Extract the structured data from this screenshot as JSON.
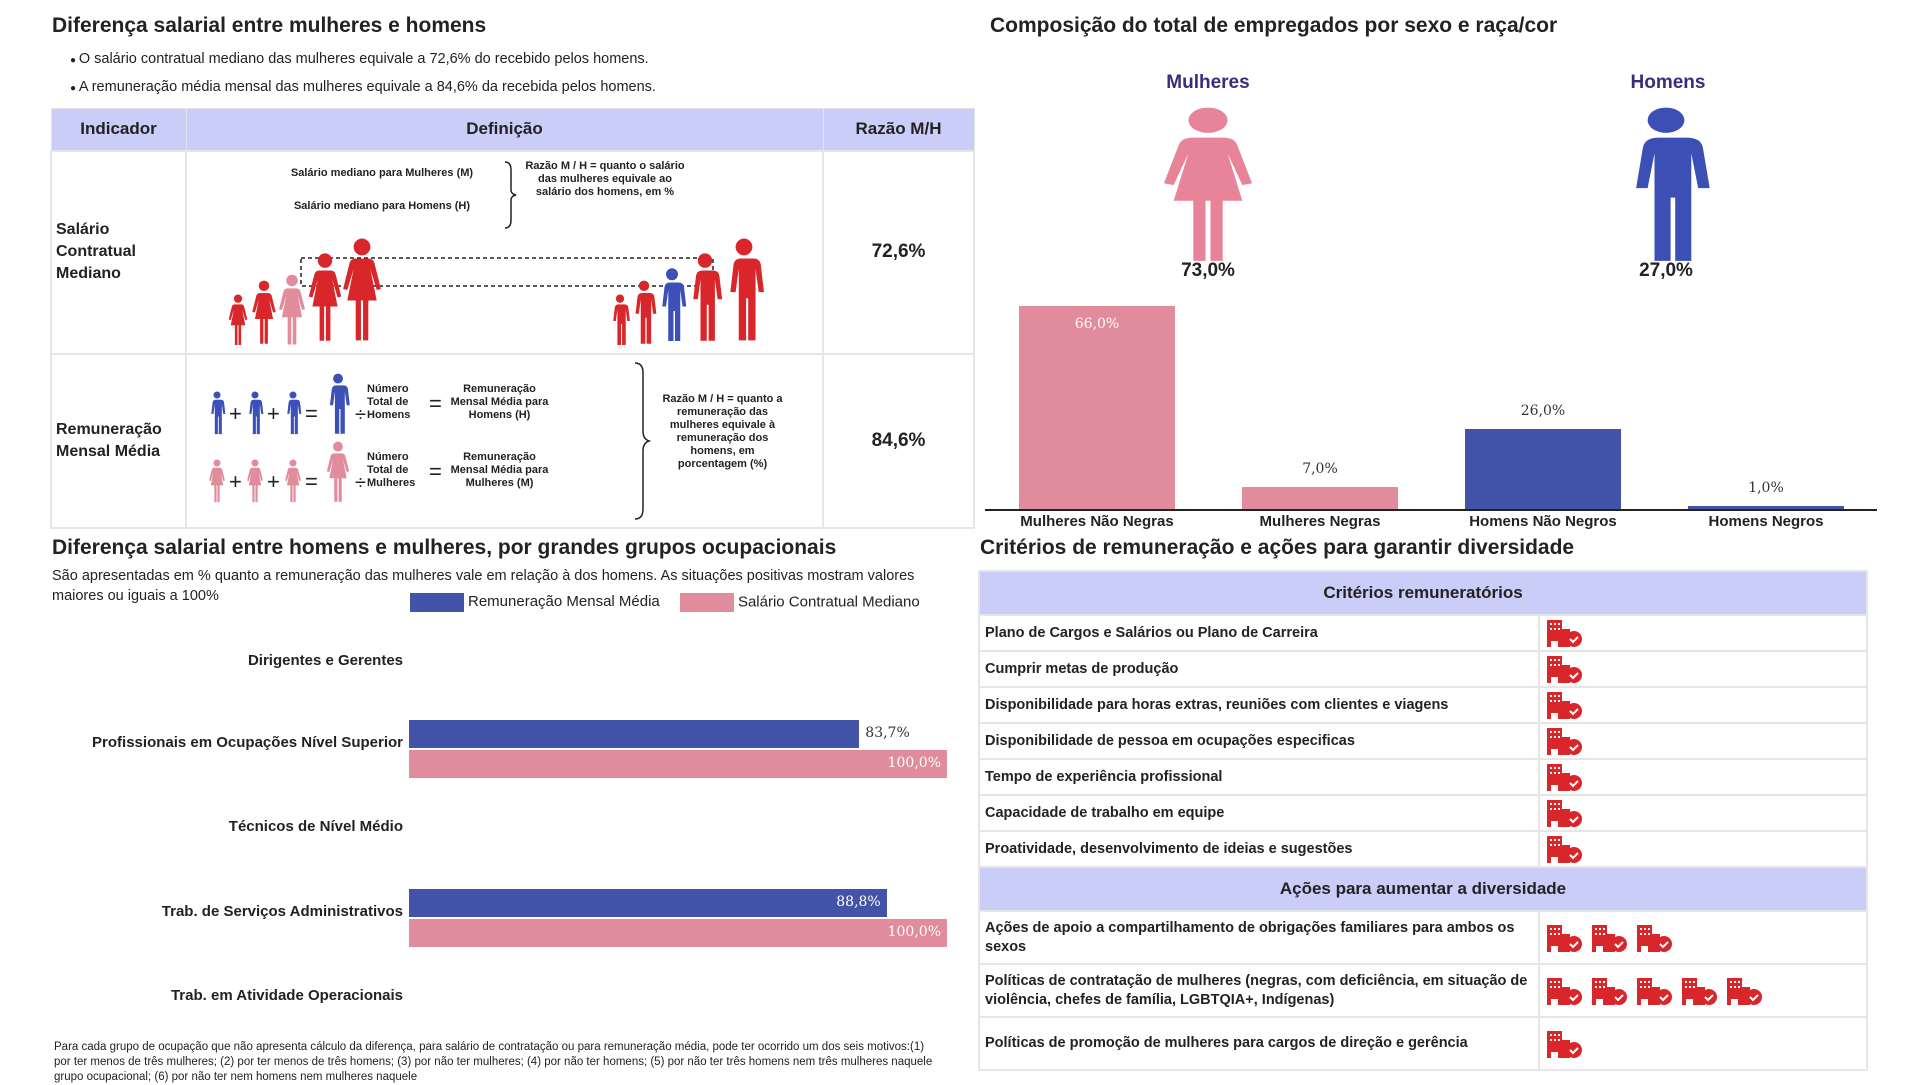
{
  "left_top": {
    "title": "Diferença salarial entre mulheres e homens",
    "bullets": [
      "O salário contratual mediano das mulheres equivale a 72,6% do recebido pelos homens.",
      "A remuneração média mensal das mulheres equivale a 84,6% da recebida pelos homens."
    ],
    "table": {
      "headers": [
        "Indicador",
        "Definição",
        "Razão M/H"
      ],
      "rows": [
        {
          "indicator": "Salário Contratual Mediano",
          "def_label_m": "Salário mediano para Mulheres (M)",
          "def_label_h": "Salário mediano para Homens (H)",
          "def_ratio": "Razão M / H = quanto o salário das mulheres equivale ao salário dos homens, em %",
          "value": "72,6%"
        },
        {
          "indicator": "Remuneração Mensal Média",
          "men_count": "Número Total de Homens",
          "men_result": "Remuneração Mensal Média para Homens (H)",
          "women_count": "Número Total de Mulheres",
          "women_result": "Remuneração Mensal Média para Mulheres (M)",
          "def_ratio": "Razão M / H = quanto a remuneração das mulheres equivale à remuneração dos homens, em porcentagem (%)",
          "value": "84,6%"
        }
      ],
      "operators": {
        "plus": "+",
        "equals": "=",
        "divide": "÷"
      }
    }
  },
  "occupations": {
    "title": "Diferença salarial entre homens e mulheres, por grandes grupos ocupacionais",
    "subtitle": "São apresentadas em % quanto a remuneração das mulheres vale em relação à dos homens. As situações positivas mostram valores maiores ou iguais a 100%",
    "footnote": "Para cada grupo de ocupação que não apresenta cálculo da diferença, para salário de contratação ou para remuneração média, pode ter ocorrido um dos seis motivos:(1) por ter menos de três mulheres; (2) por ter menos de três homens; (3) por não ter mulheres; (4) por não ter homens; (5) por não ter três homens nem três mulheres naquele grupo ocupacional; (6) por não ter nem homens nem mulheres naquele"
  },
  "composition": {
    "title": "Composição do total de empregados por sexo e raça/cor",
    "women_label": "Mulheres",
    "men_label": "Homens",
    "women_pct": "73,0%",
    "men_pct": "27,0%"
  },
  "criteria": {
    "title": "Critérios de remuneração e ações para garantir diversidade",
    "section1": "Critérios remuneratórios",
    "section2": "Ações para aumentar a diversidade",
    "icon": "building-check-icon",
    "icon_color": "#d9262b",
    "criteria_rows": [
      {
        "label": "Plano de Cargos e Salários ou Plano de Carreira",
        "icons": 1
      },
      {
        "label": "Cumprir metas de produção",
        "icons": 1
      },
      {
        "label": "Disponibilidade para horas extras, reuniões com clientes e viagens",
        "icons": 1
      },
      {
        "label": "Disponibilidade de pessoa em ocupações especificas",
        "icons": 1
      },
      {
        "label": "Tempo de experiência profissional",
        "icons": 1
      },
      {
        "label": "Capacidade de trabalho em equipe",
        "icons": 1
      },
      {
        "label": "Proatividade, desenvolvimento de ideias e sugestões",
        "icons": 1
      }
    ],
    "action_rows": [
      {
        "label": "Ações de apoio a compartilhamento de obrigações familiares para ambos os sexos",
        "icons": 3
      },
      {
        "label": "Políticas de contratação de mulheres (negras, com deficiência, em situação de violência, chefes de família, LGBTQIA+, Indígenas)",
        "icons": 5
      },
      {
        "label": "Políticas de promoção de mulheres para cargos de direção e gerência",
        "icons": 1
      }
    ]
  },
  "colors": {
    "pink": "#e08c9c",
    "blue": "#4354a8",
    "red": "#d9262b",
    "header_bg": "#c9cdf7"
  },
  "chart_data": [
    {
      "type": "bar",
      "orientation": "horizontal",
      "categories": [
        "Dirigentes e Gerentes",
        "Profissionais em Ocupações Nível Superior",
        "Técnicos de Nível Médio",
        "Trab. de Serviços Administrativos",
        "Trab. em Atividade Operacionais"
      ],
      "series": [
        {
          "name": "Remuneração Mensal Média",
          "color": "#4354a8",
          "values": [
            null,
            83.7,
            null,
            88.8,
            null
          ],
          "labels": [
            "",
            "83,7%",
            "",
            "88,8%",
            ""
          ]
        },
        {
          "name": "Salário Contratual Mediano",
          "color": "#e08c9c",
          "values": [
            null,
            100.0,
            null,
            100.0,
            null
          ],
          "labels": [
            "",
            "100,0%",
            "",
            "100,0%",
            ""
          ]
        }
      ],
      "xlim": [
        0,
        100
      ],
      "legend": "top-right",
      "grid": false
    },
    {
      "type": "bar",
      "categories": [
        "Mulheres Não Negras",
        "Mulheres Negras",
        "Homens Não Negros",
        "Homens Negros"
      ],
      "values": [
        66.0,
        7.0,
        26.0,
        1.0
      ],
      "labels": [
        "66,0%",
        "7,0%",
        "26,0%",
        "1,0%"
      ],
      "colors": [
        "#e08c9c",
        "#e08c9c",
        "#4354a8",
        "#4354a8"
      ],
      "ylim": [
        0,
        66
      ],
      "grid": false
    }
  ]
}
